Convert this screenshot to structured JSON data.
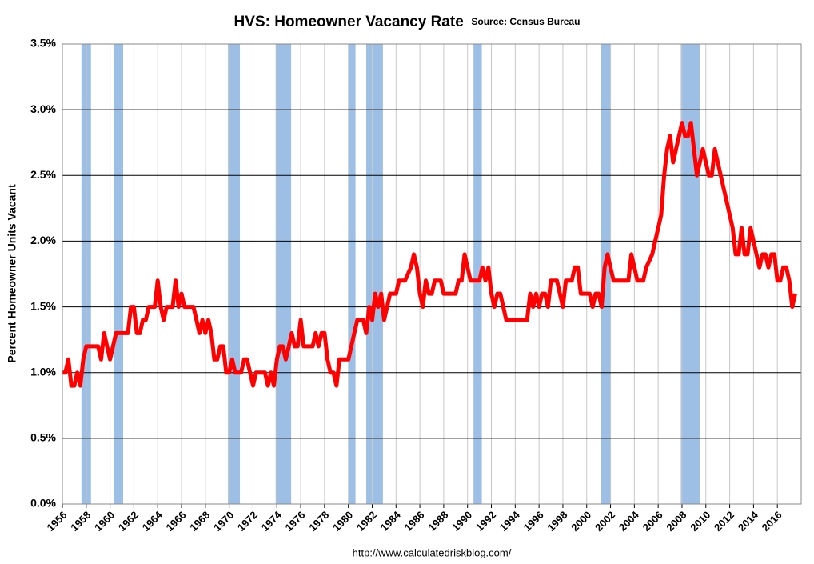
{
  "chart_data": {
    "type": "line",
    "title": "HVS: Homeowner Vacancy Rate",
    "subtitle": "Source: Census Bureau",
    "y_label": "Percent Homeowner Units Vacant",
    "footer": "http://www.calculatedriskblog.com/",
    "xlim": [
      1956,
      2018
    ],
    "xticks": [
      1956,
      1958,
      1960,
      1962,
      1964,
      1966,
      1968,
      1970,
      1972,
      1974,
      1976,
      1978,
      1980,
      1982,
      1984,
      1986,
      1988,
      1990,
      1992,
      1994,
      1996,
      1998,
      2000,
      2002,
      2004,
      2006,
      2008,
      2010,
      2012,
      2014,
      2016
    ],
    "ylim": [
      0,
      3.5
    ],
    "yticks": [
      {
        "value": 0,
        "label": "0.0%"
      },
      {
        "value": 0.5,
        "label": "0.5%"
      },
      {
        "value": 1,
        "label": "1.0%"
      },
      {
        "value": 1.5,
        "label": "1.5%"
      },
      {
        "value": 2,
        "label": "2.0%"
      },
      {
        "value": 2.5,
        "label": "2.5%"
      },
      {
        "value": 3,
        "label": "3.0%"
      },
      {
        "value": 3.5,
        "label": "3.5%"
      }
    ],
    "grid": true,
    "recession_color": "#9dbfe6",
    "recessions": [
      [
        1957.6,
        1958.4
      ],
      [
        1960.3,
        1961.1
      ],
      [
        1969.9,
        1970.9
      ],
      [
        1973.9,
        1975.2
      ],
      [
        1980.0,
        1980.6
      ],
      [
        1981.5,
        1982.9
      ],
      [
        1990.5,
        1991.2
      ],
      [
        2001.2,
        2002.0
      ],
      [
        2007.9,
        2009.5
      ]
    ],
    "x": [
      1956.0,
      1956.25,
      1956.5,
      1956.75,
      1957.0,
      1957.25,
      1957.5,
      1957.75,
      1958.0,
      1958.5,
      1959.0,
      1959.25,
      1959.5,
      1959.75,
      1960.0,
      1960.25,
      1960.5,
      1961.0,
      1961.5,
      1961.75,
      1962.0,
      1962.25,
      1962.5,
      1962.75,
      1963.0,
      1963.25,
      1963.75,
      1964.0,
      1964.25,
      1964.5,
      1964.75,
      1965.25,
      1965.5,
      1965.75,
      1966.0,
      1966.25,
      1967.0,
      1967.25,
      1967.5,
      1967.75,
      1968.0,
      1968.25,
      1968.5,
      1968.75,
      1969.0,
      1969.25,
      1969.5,
      1969.75,
      1970.0,
      1970.25,
      1970.5,
      1971.0,
      1971.25,
      1971.5,
      1971.75,
      1972.0,
      1972.25,
      1973.0,
      1973.25,
      1973.5,
      1973.75,
      1974.0,
      1974.25,
      1974.5,
      1974.75,
      1975.0,
      1975.25,
      1975.5,
      1975.75,
      1976.0,
      1976.25,
      1977.0,
      1977.25,
      1977.5,
      1977.75,
      1978.0,
      1978.25,
      1978.5,
      1978.75,
      1979.0,
      1979.25,
      1979.5,
      1980.0,
      1980.25,
      1980.5,
      1980.75,
      1981.25,
      1981.5,
      1981.75,
      1982.0,
      1982.25,
      1982.5,
      1982.75,
      1983.0,
      1983.25,
      1983.5,
      1984.0,
      1984.25,
      1984.75,
      1985.25,
      1985.5,
      1985.75,
      1986.0,
      1986.25,
      1986.5,
      1986.75,
      1987.0,
      1987.25,
      1987.75,
      1988.0,
      1989.0,
      1989.25,
      1989.5,
      1989.75,
      1990.0,
      1990.25,
      1991.0,
      1991.25,
      1991.5,
      1991.75,
      1992.0,
      1992.25,
      1992.5,
      1992.75,
      1993.0,
      1993.25,
      1994.0,
      1995.0,
      1995.25,
      1995.5,
      1995.75,
      1996.0,
      1996.25,
      1996.5,
      1996.75,
      1997.0,
      1997.5,
      1997.75,
      1998.0,
      1998.25,
      1998.75,
      1999.0,
      1999.25,
      1999.5,
      2000.25,
      2000.5,
      2000.75,
      2001.0,
      2001.25,
      2001.5,
      2001.75,
      2002.0,
      2002.25,
      2003.5,
      2003.75,
      2004.0,
      2004.25,
      2004.75,
      2005.0,
      2005.5,
      2005.75,
      2006.0,
      2006.25,
      2006.5,
      2006.75,
      2007.0,
      2007.25,
      2007.5,
      2007.75,
      2008.0,
      2008.25,
      2008.5,
      2008.75,
      2009.0,
      2009.25,
      2009.5,
      2009.75,
      2010.0,
      2010.25,
      2010.5,
      2010.75,
      2011.0,
      2011.25,
      2011.5,
      2011.75,
      2012.0,
      2012.25,
      2012.5,
      2012.75,
      2013.0,
      2013.25,
      2013.5,
      2013.75,
      2014.0,
      2014.25,
      2014.5,
      2014.75,
      2015.0,
      2015.25,
      2015.5,
      2015.75,
      2016.0,
      2016.25,
      2016.5,
      2016.75,
      2017.0,
      2017.25,
      2017.5
    ],
    "series": [
      {
        "color": "#ff0000",
        "values": [
          1.0,
          1.0,
          1.1,
          0.9,
          0.9,
          1.0,
          0.9,
          1.1,
          1.2,
          1.2,
          1.2,
          1.1,
          1.3,
          1.2,
          1.1,
          1.2,
          1.3,
          1.3,
          1.3,
          1.5,
          1.5,
          1.3,
          1.3,
          1.4,
          1.4,
          1.5,
          1.5,
          1.7,
          1.5,
          1.4,
          1.5,
          1.5,
          1.7,
          1.5,
          1.6,
          1.5,
          1.5,
          1.4,
          1.3,
          1.4,
          1.3,
          1.4,
          1.3,
          1.1,
          1.1,
          1.2,
          1.2,
          1.0,
          1.0,
          1.1,
          1.0,
          1.0,
          1.1,
          1.1,
          1.0,
          0.9,
          1.0,
          1.0,
          0.9,
          1.0,
          0.9,
          1.1,
          1.2,
          1.2,
          1.1,
          1.2,
          1.3,
          1.2,
          1.2,
          1.4,
          1.2,
          1.2,
          1.3,
          1.2,
          1.3,
          1.3,
          1.1,
          1.0,
          1.0,
          0.9,
          1.1,
          1.1,
          1.1,
          1.2,
          1.3,
          1.4,
          1.4,
          1.3,
          1.5,
          1.4,
          1.6,
          1.5,
          1.6,
          1.4,
          1.5,
          1.6,
          1.6,
          1.7,
          1.7,
          1.8,
          1.9,
          1.8,
          1.6,
          1.5,
          1.7,
          1.6,
          1.6,
          1.7,
          1.7,
          1.6,
          1.6,
          1.7,
          1.7,
          1.9,
          1.8,
          1.7,
          1.7,
          1.8,
          1.7,
          1.8,
          1.6,
          1.5,
          1.6,
          1.6,
          1.5,
          1.4,
          1.4,
          1.4,
          1.6,
          1.5,
          1.6,
          1.5,
          1.6,
          1.6,
          1.5,
          1.7,
          1.7,
          1.6,
          1.5,
          1.7,
          1.7,
          1.8,
          1.8,
          1.6,
          1.6,
          1.5,
          1.6,
          1.6,
          1.5,
          1.8,
          1.9,
          1.8,
          1.7,
          1.7,
          1.9,
          1.8,
          1.7,
          1.7,
          1.8,
          1.9,
          2.0,
          2.1,
          2.2,
          2.5,
          2.7,
          2.8,
          2.6,
          2.7,
          2.8,
          2.9,
          2.8,
          2.8,
          2.9,
          2.7,
          2.5,
          2.6,
          2.7,
          2.6,
          2.5,
          2.5,
          2.7,
          2.6,
          2.5,
          2.4,
          2.3,
          2.2,
          2.1,
          1.9,
          1.9,
          2.1,
          1.9,
          1.9,
          2.1,
          2.0,
          1.9,
          1.8,
          1.9,
          1.9,
          1.8,
          1.9,
          1.9,
          1.7,
          1.7,
          1.8,
          1.8,
          1.7,
          1.5,
          1.6
        ]
      }
    ]
  }
}
